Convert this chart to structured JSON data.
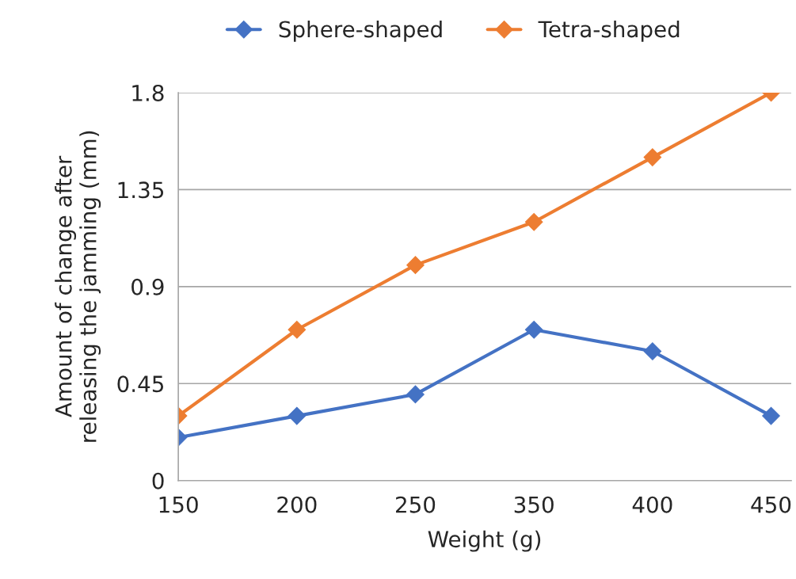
{
  "chart_data": {
    "type": "line",
    "xlabel": "Weight (g)",
    "ylabel": "Amount of change after\nreleasing the jamming (mm)",
    "categories": [
      "150",
      "200",
      "250",
      "350",
      "400",
      "450"
    ],
    "series": [
      {
        "name": "Sphere-shaped",
        "color": "#4472c4",
        "values": [
          0.2,
          0.3,
          0.4,
          0.7,
          0.6,
          0.3
        ]
      },
      {
        "name": "Tetra-shaped",
        "color": "#ed7d31",
        "values": [
          0.3,
          0.7,
          1.0,
          1.2,
          1.5,
          1.8
        ]
      }
    ],
    "ylim": [
      0,
      1.8
    ],
    "yticks": [
      0,
      0.45,
      0.9,
      1.35,
      1.8
    ],
    "grid": "y",
    "legend": "top",
    "marker": "diamond",
    "line_style": "solid"
  }
}
